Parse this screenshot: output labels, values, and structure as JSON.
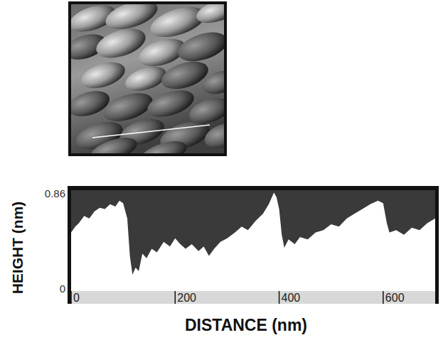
{
  "chart_data": {
    "type": "area",
    "x_label": "DISTANCE (nm)",
    "y_label": "HEIGHT (nm)",
    "x": [
      0,
      8,
      15,
      25,
      35,
      45,
      55,
      65,
      75,
      85,
      93,
      100,
      108,
      113,
      118,
      124,
      130,
      137,
      145,
      155,
      165,
      178,
      190,
      200,
      210,
      220,
      232,
      245,
      255,
      265,
      275,
      287,
      300,
      315,
      328,
      340,
      355,
      369,
      380,
      390,
      395,
      400,
      405,
      410,
      418,
      430,
      440,
      455,
      470,
      485,
      500,
      515,
      530,
      545,
      560,
      575,
      590,
      600,
      607,
      612,
      625,
      640,
      655,
      670,
      685,
      700
    ],
    "values": [
      0.5,
      0.55,
      0.58,
      0.64,
      0.62,
      0.68,
      0.71,
      0.7,
      0.74,
      0.72,
      0.77,
      0.75,
      0.62,
      0.3,
      0.14,
      0.2,
      0.17,
      0.32,
      0.28,
      0.36,
      0.33,
      0.42,
      0.38,
      0.45,
      0.4,
      0.36,
      0.4,
      0.34,
      0.38,
      0.3,
      0.36,
      0.42,
      0.45,
      0.5,
      0.55,
      0.52,
      0.6,
      0.66,
      0.74,
      0.84,
      0.8,
      0.7,
      0.48,
      0.37,
      0.44,
      0.4,
      0.46,
      0.44,
      0.5,
      0.52,
      0.57,
      0.55,
      0.62,
      0.66,
      0.7,
      0.74,
      0.77,
      0.75,
      0.58,
      0.5,
      0.52,
      0.48,
      0.54,
      0.52,
      0.58,
      0.62
    ],
    "xlim": [
      0,
      700
    ],
    "ylim": [
      0,
      0.86
    ],
    "xticks": [
      0,
      200,
      400,
      600
    ],
    "yticks": [
      0,
      0.86
    ],
    "color": "#3a3a3a",
    "grid": false
  }
}
